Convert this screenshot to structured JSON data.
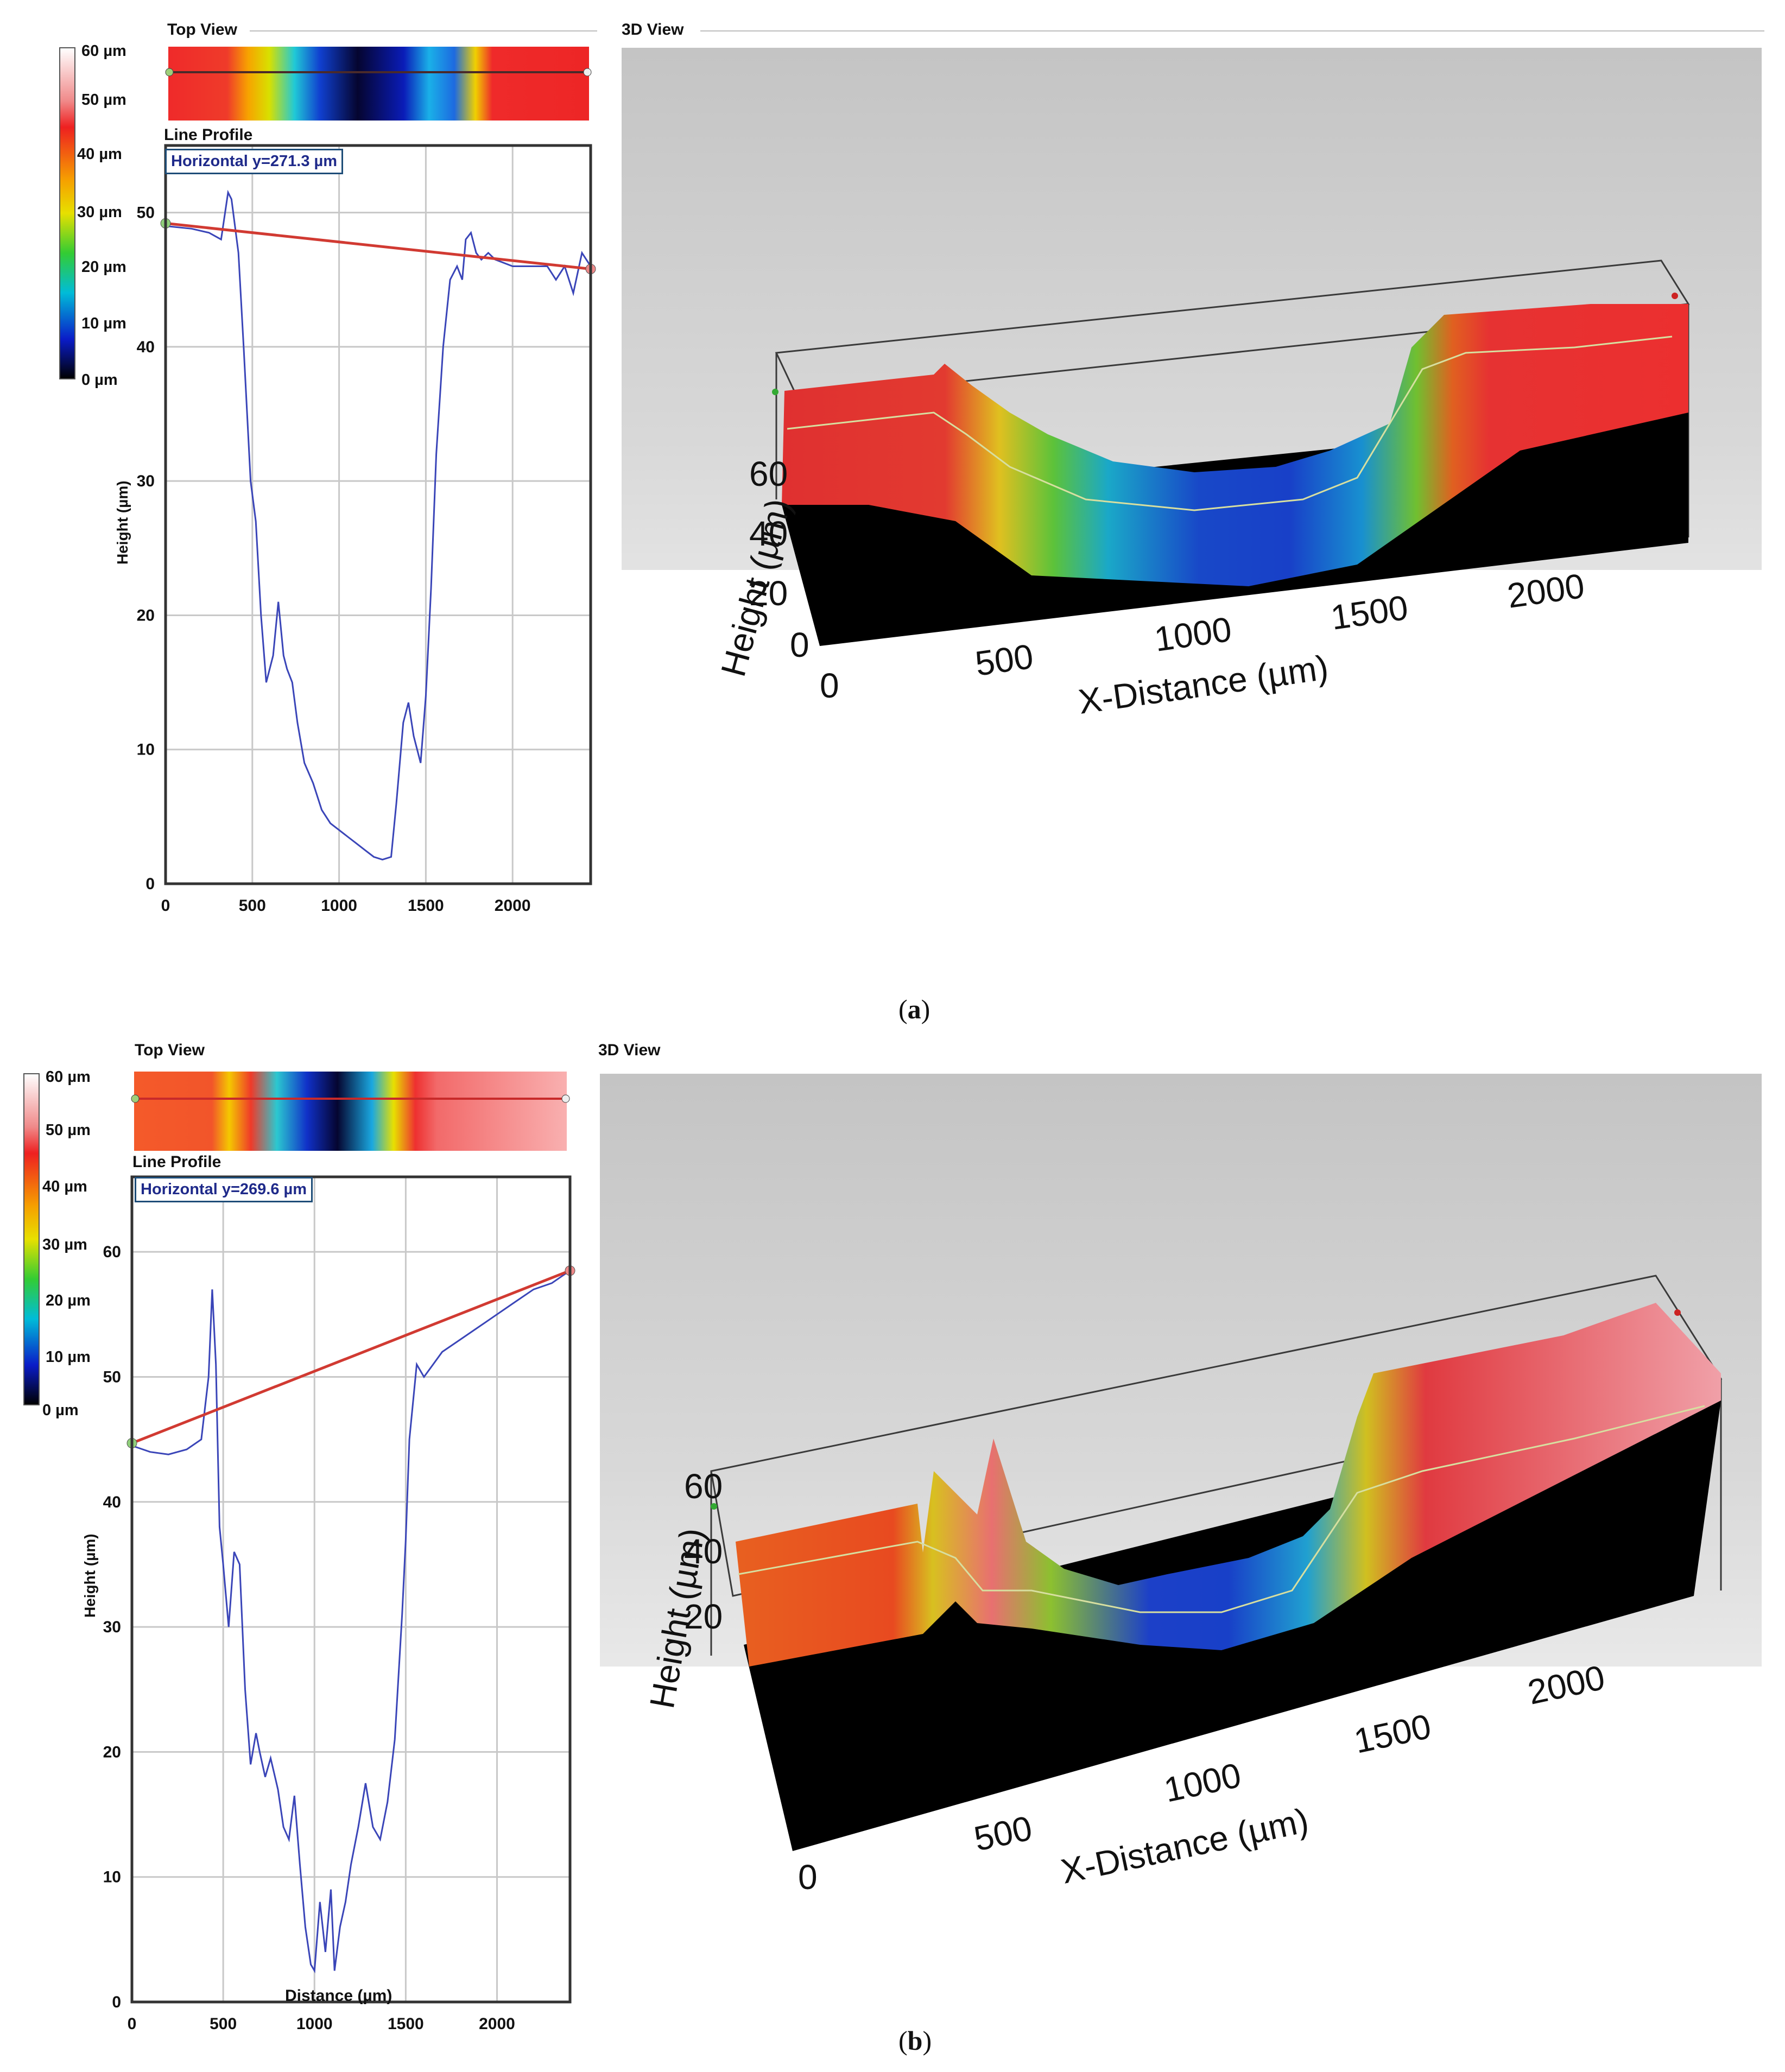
{
  "panels": [
    {
      "id": "a",
      "caption_letter": "a",
      "top_view_title": "Top View",
      "view3d_title": "3D View",
      "colorbar_ticks": [
        "60 µm",
        "50 µm",
        "40 µm",
        "30 µm",
        "20 µm",
        "10 µm",
        "0 µm"
      ],
      "line_profile_title": "Line Profile",
      "profile_label": "Horizontal y=271.3 µm",
      "ylabel": "Height (µm)",
      "xlabel": "",
      "view3d": {
        "ylabel": "Height (µm)",
        "xlabel": "X-Distance (µm)",
        "yticks": [
          "0",
          "20",
          "40",
          "60"
        ],
        "xticks": [
          "0",
          "500",
          "1000",
          "1500",
          "2000"
        ]
      },
      "chart_data": {
        "type": "line",
        "title": "Line Profile",
        "xlabel": "",
        "ylabel": "Height (µm)",
        "xlim": [
          0,
          2450
        ],
        "ylim": [
          0,
          55
        ],
        "xticks": [
          0,
          500,
          1000,
          1500,
          2000
        ],
        "yticks": [
          0,
          10,
          20,
          30,
          40,
          50
        ],
        "grid": true,
        "series": [
          {
            "color": "#3a45b8",
            "x": [
              0,
              150,
              250,
              320,
              360,
              380,
              420,
              450,
              490,
              520,
              550,
              580,
              620,
              650,
              680,
              700,
              730,
              760,
              800,
              850,
              900,
              950,
              1000,
              1050,
              1100,
              1150,
              1200,
              1250,
              1300,
              1330,
              1370,
              1400,
              1430,
              1470,
              1500,
              1530,
              1560,
              1600,
              1640,
              1680,
              1710,
              1730,
              1760,
              1790,
              1820,
              1860,
              1900,
              2000,
              2100,
              2200,
              2250,
              2300,
              2350,
              2400,
              2450
            ],
            "y": [
              49,
              48.8,
              48.5,
              48,
              51.5,
              51,
              47,
              40,
              30,
              27,
              20,
              15,
              17,
              21,
              17,
              16,
              15,
              12,
              9,
              7.5,
              5.5,
              4.5,
              4,
              3.5,
              3,
              2.5,
              2,
              1.8,
              2,
              6,
              12,
              13.5,
              11,
              9,
              14,
              22,
              32,
              40,
              45,
              46,
              45,
              48,
              48.5,
              47,
              46.5,
              47,
              46.5,
              46,
              46,
              46,
              45,
              46,
              44,
              47,
              46
            ]
          },
          {
            "color": "#d13a32",
            "x": [
              0,
              2450
            ],
            "y": [
              49.2,
              45.8
            ]
          }
        ]
      }
    },
    {
      "id": "b",
      "caption_letter": "b",
      "top_view_title": "Top View",
      "view3d_title": "3D View",
      "colorbar_ticks": [
        "60 µm",
        "50 µm",
        "40 µm",
        "30 µm",
        "20 µm",
        "10 µm",
        "0 µm"
      ],
      "line_profile_title": "Line Profile",
      "profile_label": "Horizontal y=269.6 µm",
      "ylabel": "Height (µm)",
      "xlabel": "Distance (µm)",
      "view3d": {
        "ylabel": "Height (µm)",
        "xlabel": "X-Distance (µm)",
        "yticks": [
          "20",
          "40",
          "60"
        ],
        "xticks": [
          "0",
          "500",
          "1000",
          "1500",
          "2000"
        ]
      },
      "chart_data": {
        "type": "line",
        "title": "Line Profile",
        "xlabel": "Distance (µm)",
        "ylabel": "Height (µm)",
        "xlim": [
          0,
          2400
        ],
        "ylim": [
          0,
          66
        ],
        "xticks": [
          0,
          500,
          1000,
          1500,
          2000
        ],
        "yticks": [
          0,
          10,
          20,
          30,
          40,
          50,
          60
        ],
        "grid": true,
        "series": [
          {
            "color": "#3a45b8",
            "x": [
              0,
              100,
              200,
              300,
              380,
              420,
              440,
              460,
              480,
              500,
              530,
              560,
              590,
              620,
              650,
              680,
              700,
              730,
              760,
              800,
              830,
              860,
              890,
              920,
              950,
              980,
              1000,
              1030,
              1060,
              1090,
              1110,
              1140,
              1170,
              1200,
              1240,
              1280,
              1320,
              1360,
              1400,
              1440,
              1480,
              1500,
              1520,
              1560,
              1600,
              1650,
              1700,
              1800,
              1900,
              2000,
              2100,
              2200,
              2300,
              2350,
              2400
            ],
            "y": [
              44.5,
              44,
              43.8,
              44.2,
              45,
              50,
              57,
              51,
              38,
              35,
              30,
              36,
              35,
              25,
              19,
              21.5,
              20,
              18,
              19.5,
              17,
              14,
              13,
              16.5,
              11,
              6,
              3,
              2.5,
              8,
              4,
              9,
              2.5,
              6,
              8,
              11,
              14,
              17.5,
              14,
              13,
              16,
              21,
              31,
              37,
              45,
              51,
              50,
              51,
              52,
              53,
              54,
              55,
              56,
              57,
              57.5,
              58,
              58.5
            ]
          },
          {
            "color": "#d13a32",
            "x": [
              0,
              2400
            ],
            "y": [
              44.7,
              58.5
            ]
          }
        ]
      }
    }
  ]
}
